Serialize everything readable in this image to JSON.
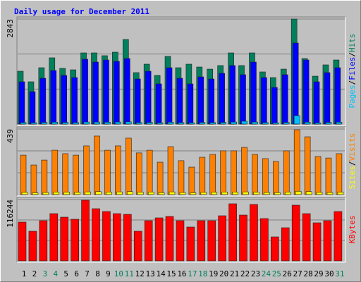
{
  "chart_data": [
    {
      "type": "bar",
      "title": "Daily usage for December 2011",
      "ylim": [
        0,
        2843
      ],
      "yticks": [
        2843
      ],
      "legend_separator": "/",
      "series": [
        {
          "name": "Hits",
          "color": "#00805c",
          "values": [
            1431,
            1145,
            1526,
            1794,
            1507,
            1469,
            1927,
            1927,
            1851,
            1946,
            2290,
            1393,
            1622,
            1317,
            1832,
            1526,
            1622,
            1545,
            1488,
            1584,
            1927,
            1584,
            1927,
            1412,
            1259,
            1488,
            2843,
            1774,
            1297,
            1603,
            1736
          ]
        },
        {
          "name": "Files",
          "color": "#0000ff",
          "values": [
            1145,
            878,
            1240,
            1450,
            1317,
            1259,
            1755,
            1679,
            1736,
            1698,
            1774,
            1221,
            1431,
            1088,
            1526,
            1240,
            1088,
            1278,
            1221,
            1374,
            1584,
            1336,
            1679,
            1259,
            992,
            1336,
            2194,
            1736,
            1145,
            1393,
            1526
          ]
        },
        {
          "name": "Pages",
          "color": "#00c0ff",
          "values": [
            40,
            35,
            45,
            50,
            45,
            40,
            55,
            55,
            50,
            55,
            60,
            40,
            45,
            35,
            50,
            40,
            35,
            45,
            40,
            45,
            55,
            76,
            55,
            40,
            35,
            45,
            229,
            50,
            35,
            45,
            50
          ]
        }
      ]
    },
    {
      "type": "bar",
      "ylim": [
        0,
        439
      ],
      "yticks": [
        439
      ],
      "legend_separator": "/",
      "series": [
        {
          "name": "Visits",
          "color": "#ff8000",
          "values": [
            264,
            198,
            231,
            297,
            274,
            264,
            326,
            392,
            297,
            326,
            378,
            279,
            297,
            217,
            321,
            227,
            184,
            250,
            269,
            293,
            293,
            316,
            269,
            241,
            222,
            293,
            434,
            387,
            255,
            245,
            274
          ]
        },
        {
          "name": "Sites",
          "color": "#ffff00",
          "values": [
            15,
            12,
            14,
            17,
            16,
            15,
            18,
            20,
            17,
            18,
            20,
            16,
            17,
            13,
            18,
            14,
            12,
            15,
            16,
            17,
            17,
            18,
            16,
            14,
            13,
            17,
            22,
            20,
            15,
            14,
            16
          ]
        }
      ]
    },
    {
      "type": "bar",
      "ylim": [
        0,
        116244
      ],
      "yticks": [
        116244
      ],
      "categories": [
        "1",
        "2",
        "3",
        "4",
        "5",
        "6",
        "7",
        "8",
        "9",
        "10",
        "11",
        "12",
        "13",
        "14",
        "15",
        "16",
        "17",
        "18",
        "19",
        "20",
        "21",
        "22",
        "23",
        "24",
        "25",
        "26",
        "27",
        "28",
        "29",
        "30",
        "31"
      ],
      "category_colors": [
        "#000000",
        "#000000",
        "#00805c",
        "#00805c",
        "#000000",
        "#000000",
        "#000000",
        "#000000",
        "#000000",
        "#00805c",
        "#00805c",
        "#000000",
        "#000000",
        "#000000",
        "#000000",
        "#000000",
        "#00805c",
        "#00805c",
        "#000000",
        "#000000",
        "#000000",
        "#000000",
        "#000000",
        "#00805c",
        "#00805c",
        "#000000",
        "#000000",
        "#000000",
        "#000000",
        "#000000",
        "#00805c"
      ],
      "series": [
        {
          "name": "KBytes",
          "color": "#ff0000",
          "values": [
            73479,
            56110,
            76151,
            89520,
            82840,
            78832,
            114908,
            98860,
            93516,
            89520,
            88184,
            56110,
            76151,
            81496,
            84168,
            76151,
            64128,
            76151,
            76151,
            85504,
            108216,
            86840,
            106880,
            80160,
            45424,
            62792,
            105544,
            89520,
            72144,
            76151,
            93516
          ]
        }
      ]
    }
  ]
}
